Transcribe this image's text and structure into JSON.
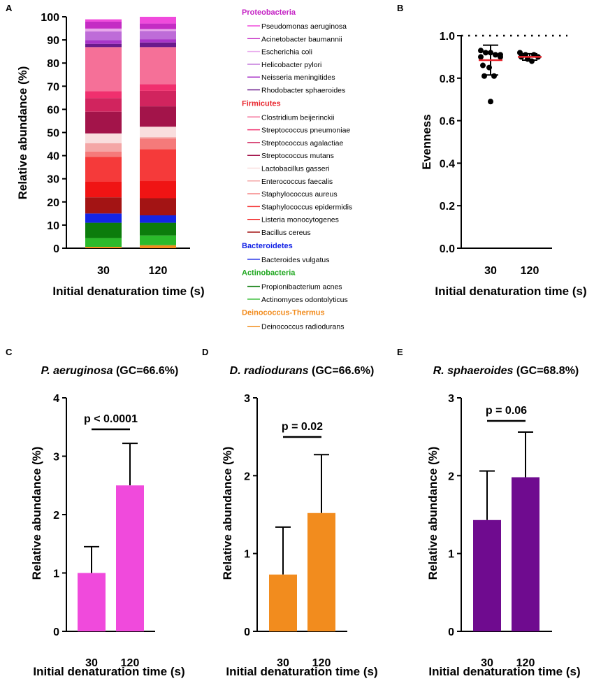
{
  "chart_data": [
    {
      "panel": "A",
      "type": "bar",
      "stacked": true,
      "categories": [
        "30",
        "120"
      ],
      "xlabel": "Initial denaturation time (s)",
      "ylabel": "Relative abundance (%)",
      "ylim": [
        0,
        100
      ],
      "yticks": [
        0,
        10,
        20,
        30,
        40,
        50,
        60,
        70,
        80,
        90,
        100
      ],
      "series": [
        {
          "name": "Deinococcus radiodurans",
          "group": "Deinococcus-Thermus",
          "color": "#F28C1E",
          "values": [
            0.6,
            1.3
          ]
        },
        {
          "name": "Actinomyces odontolyticus",
          "group": "Actinobacteria",
          "color": "#2BBA2B",
          "values": [
            3.8,
            4.2
          ]
        },
        {
          "name": "Propionibacterium acnes",
          "group": "Actinobacteria",
          "color": "#0C7C0C",
          "values": [
            6.6,
            5.5
          ]
        },
        {
          "name": "Bacteroides vulgatus",
          "group": "Bacteroidetes",
          "color": "#1424E6",
          "values": [
            4.0,
            3.2
          ]
        },
        {
          "name": "Bacillus cereus",
          "group": "Firmicutes",
          "color": "#A31414",
          "values": [
            7.0,
            7.4
          ]
        },
        {
          "name": "Listeria monocytogenes",
          "group": "Firmicutes",
          "color": "#F01414",
          "values": [
            6.7,
            7.4
          ]
        },
        {
          "name": "Staphylococcus epidermidis",
          "group": "Firmicutes",
          "color": "#F53A3A",
          "values": [
            10.8,
            13.8
          ]
        },
        {
          "name": "Staphylococcus aureus",
          "group": "Firmicutes",
          "color": "#F57A7A",
          "values": [
            2.3,
            4.6
          ]
        },
        {
          "name": "Enterococcus faecalis",
          "group": "Firmicutes",
          "color": "#F4A6A6",
          "values": [
            3.6,
            0.6
          ]
        },
        {
          "name": "Lactobacillus gasseri",
          "group": "Firmicutes",
          "color": "#F9DEDE",
          "values": [
            4.2,
            4.5
          ]
        },
        {
          "name": "Streptococcus mutans",
          "group": "Firmicutes",
          "color": "#A3144A",
          "values": [
            9.4,
            8.8
          ]
        },
        {
          "name": "Streptococcus agalactiae",
          "group": "Firmicutes",
          "color": "#D1245E",
          "values": [
            5.9,
            6.7
          ]
        },
        {
          "name": "Streptococcus pneumoniae",
          "group": "Firmicutes",
          "color": "#F0306E",
          "values": [
            3.0,
            2.9
          ]
        },
        {
          "name": "Clostridium beijerinckii",
          "group": "Firmicutes",
          "color": "#F57098",
          "values": [
            19.0,
            16.0
          ]
        },
        {
          "name": "Rhodobacter sphaeroides",
          "group": "Proteobacteria",
          "color": "#6A1A8C",
          "values": [
            1.4,
            2.0
          ]
        },
        {
          "name": "Neisseria meningitides",
          "group": "Proteobacteria",
          "color": "#A834C8",
          "values": [
            1.6,
            1.4
          ]
        },
        {
          "name": "Helicobacter pylori",
          "group": "Proteobacteria",
          "color": "#BE6CD8",
          "values": [
            3.8,
            3.6
          ]
        },
        {
          "name": "Escherichia coli",
          "group": "Proteobacteria",
          "color": "#E8A8EC",
          "values": [
            1.2,
            0.8
          ]
        },
        {
          "name": "Acinetobacter baumannii",
          "group": "Proteobacteria",
          "color": "#C42CC4",
          "values": [
            3.0,
            2.4
          ]
        },
        {
          "name": "Pseudomonas aeruginosa",
          "group": "Proteobacteria",
          "color": "#F04ADC",
          "values": [
            1.0,
            2.9
          ]
        }
      ],
      "legend": [
        {
          "group": "Proteobacteria",
          "color": "#C31FC3",
          "items": [
            {
              "name": "Pseudomonas aeruginosa",
              "color": "#F04ADC"
            },
            {
              "name": "Acinetobacter baumannii",
              "color": "#C42CC4"
            },
            {
              "name": "Escherichia coli",
              "color": "#E8A8EC"
            },
            {
              "name": "Helicobacter pylori",
              "color": "#BE6CD8"
            },
            {
              "name": "Neisseria meningitides",
              "color": "#A834C8"
            },
            {
              "name": "Rhodobacter sphaeroides",
              "color": "#6A1A8C"
            }
          ]
        },
        {
          "group": "Firmicutes",
          "color": "#E8262E",
          "items": [
            {
              "name": "Clostridium beijerinckii",
              "color": "#F57098"
            },
            {
              "name": "Streptococcus pneumoniae",
              "color": "#F0306E"
            },
            {
              "name": "Streptococcus agalactiae",
              "color": "#D1245E"
            },
            {
              "name": "Streptococcus mutans",
              "color": "#A3144A"
            },
            {
              "name": "Lactobacillus gasseri",
              "color": "#F9DEDE"
            },
            {
              "name": "Enterococcus faecalis",
              "color": "#F4A6A6"
            },
            {
              "name": "Staphylococcus aureus",
              "color": "#F57A7A"
            },
            {
              "name": "Staphylococcus epidermidis",
              "color": "#F53A3A"
            },
            {
              "name": "Listeria monocytogenes",
              "color": "#F01414"
            },
            {
              "name": "Bacillus cereus",
              "color": "#A31414"
            }
          ]
        },
        {
          "group": "Bacteroidetes",
          "color": "#1424E6",
          "items": [
            {
              "name": "Bacteroides vulgatus",
              "color": "#1424E6"
            }
          ]
        },
        {
          "group": "Actinobacteria",
          "color": "#22A822",
          "items": [
            {
              "name": "Propionibacterium acnes",
              "color": "#0C7C0C"
            },
            {
              "name": "Actinomyces odontolyticus",
              "color": "#2BBA2B"
            }
          ]
        },
        {
          "group": "Deinococcus-Thermus",
          "color": "#F28C1E",
          "items": [
            {
              "name": "Deinococcus radiodurans",
              "color": "#F28C1E"
            }
          ]
        }
      ]
    },
    {
      "panel": "B",
      "type": "scatter",
      "categories": [
        "30",
        "120"
      ],
      "xlabel": "Initial denaturation time (s)",
      "ylabel": "Evenness",
      "ylim": [
        0,
        1.0
      ],
      "yticks": [
        "0.0",
        "0.2",
        "0.4",
        "0.6",
        "0.8",
        "1.0"
      ],
      "reference_line": 1.0,
      "series": [
        {
          "category": "30",
          "mean": 0.885,
          "error": [
            0.815,
            0.955
          ],
          "points": [
            0.93,
            0.92,
            0.92,
            0.91,
            0.91,
            0.9,
            0.9,
            0.86,
            0.85,
            0.81,
            0.81,
            0.69
          ]
        },
        {
          "category": "120",
          "mean": 0.9,
          "error": [
            0.885,
            0.915
          ],
          "points": [
            0.92,
            0.91,
            0.91,
            0.9,
            0.9,
            0.89,
            0.88
          ]
        }
      ],
      "mean_color": "#E8262E"
    },
    {
      "panel": "C",
      "type": "bar",
      "title_species": "P. aeruginosa",
      "title_gc": "(GC=66.6%)",
      "categories": [
        "30",
        "120"
      ],
      "values": [
        1.0,
        2.5
      ],
      "errors": [
        0.45,
        0.72
      ],
      "color": "#F04ADC",
      "p_value": "p < 0.0001",
      "xlabel": "Initial denaturation time (s)",
      "ylabel": "Relative abundance (%)",
      "ylim": [
        0,
        4
      ],
      "yticks": [
        0,
        1,
        2,
        3,
        4
      ]
    },
    {
      "panel": "D",
      "type": "bar",
      "title_species": "D. radiodurans",
      "title_gc": "(GC=66.6%)",
      "categories": [
        "30",
        "120"
      ],
      "values": [
        0.73,
        1.52
      ],
      "errors": [
        0.61,
        0.75
      ],
      "color": "#F28C1E",
      "p_value": "p = 0.02",
      "xlabel": "Initial denaturation time (s)",
      "ylabel": "Relative abundance (%)",
      "ylim": [
        0,
        3
      ],
      "yticks": [
        0,
        1,
        2,
        3
      ]
    },
    {
      "panel": "E",
      "type": "bar",
      "title_species": "R. sphaeroides",
      "title_gc": "(GC=68.8%)",
      "categories": [
        "30",
        "120"
      ],
      "values": [
        1.43,
        1.98
      ],
      "errors": [
        0.63,
        0.58
      ],
      "color": "#6F0B8F",
      "p_value": "p = 0.06",
      "xlabel": "Initial denaturation time (s)",
      "ylabel": "Relative abundance (%)",
      "ylim": [
        0,
        3
      ],
      "yticks": [
        0,
        1,
        2,
        3
      ]
    }
  ]
}
